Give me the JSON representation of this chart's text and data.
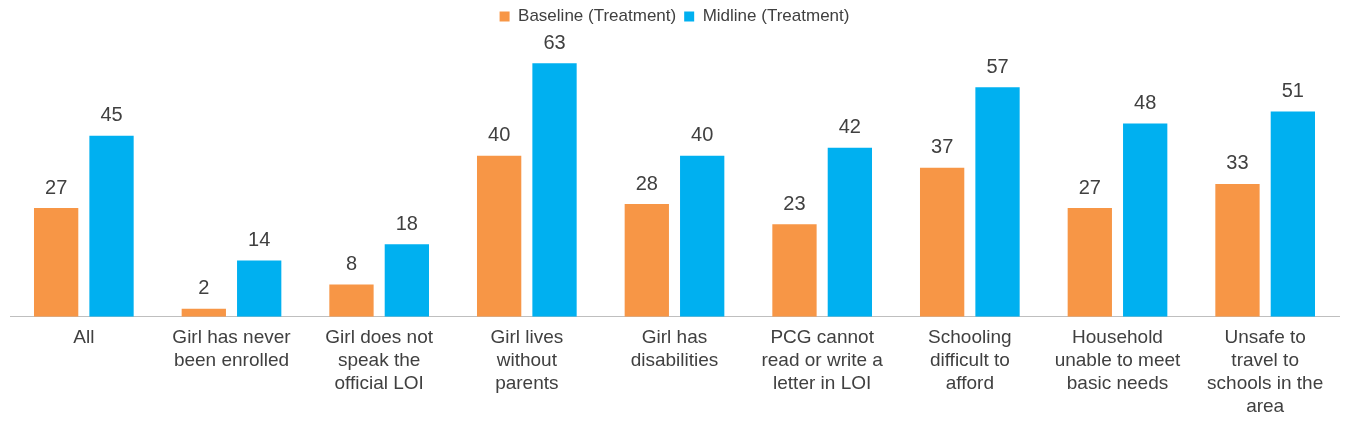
{
  "chart_data": {
    "type": "bar",
    "categories": [
      "All",
      "Girl has never been enrolled",
      "Girl does not speak the official LOI",
      "Girl lives without parents",
      "Girl has disabilities",
      "PCG cannot read or write a letter in LOI",
      "Schooling difficult to afford",
      "Household unable to meet basic needs",
      "Unsafe to travel to schools in the area"
    ],
    "series": [
      {
        "name": "Baseline (Treatment)",
        "color": "#f79646",
        "values": [
          27,
          2,
          8,
          40,
          28,
          23,
          37,
          27,
          33
        ]
      },
      {
        "name": "Midline (Treatment)",
        "color": "#00b0f0",
        "values": [
          45,
          14,
          18,
          63,
          40,
          42,
          57,
          48,
          51
        ]
      }
    ],
    "tick_labels": "x",
    "data_labels": true,
    "legend": "top",
    "grid": false
  }
}
